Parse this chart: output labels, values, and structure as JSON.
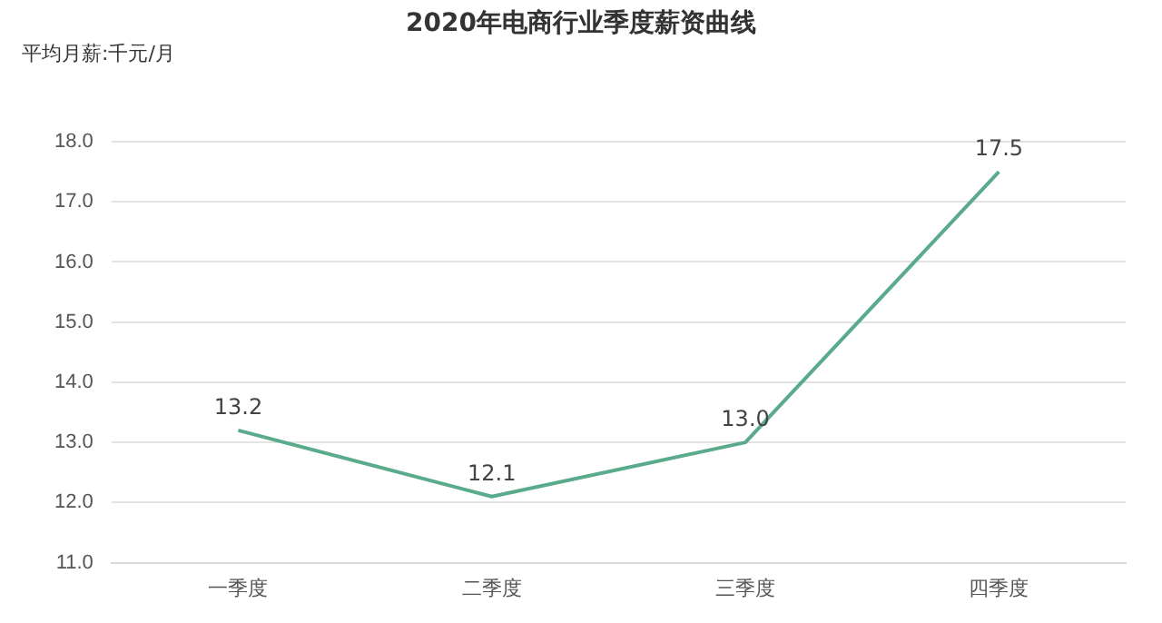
{
  "chart_data": {
    "type": "line",
    "title": "2020年电商行业季度薪资曲线",
    "ylabel": "平均月薪:千元/月",
    "categories": [
      "一季度",
      "二季度",
      "三季度",
      "四季度"
    ],
    "series": [
      {
        "color": "#5aab8c",
        "values": [
          13.2,
          12.1,
          13.0,
          17.5
        ],
        "value_labels": [
          "13.2",
          "12.1",
          "13.0",
          "17.5"
        ]
      }
    ],
    "ylim": [
      11,
      18
    ],
    "yticks": [
      {
        "value": 11,
        "label": "11.0"
      },
      {
        "value": 12,
        "label": "12.0"
      },
      {
        "value": 13,
        "label": "13.0"
      },
      {
        "value": 14,
        "label": "14.0"
      },
      {
        "value": 15,
        "label": "15.0"
      },
      {
        "value": 16,
        "label": "16.0"
      },
      {
        "value": 17,
        "label": "17.0"
      },
      {
        "value": 18,
        "label": "18.0"
      }
    ],
    "grid": "y",
    "legend": false,
    "marker": "none",
    "line_style": "solid"
  }
}
